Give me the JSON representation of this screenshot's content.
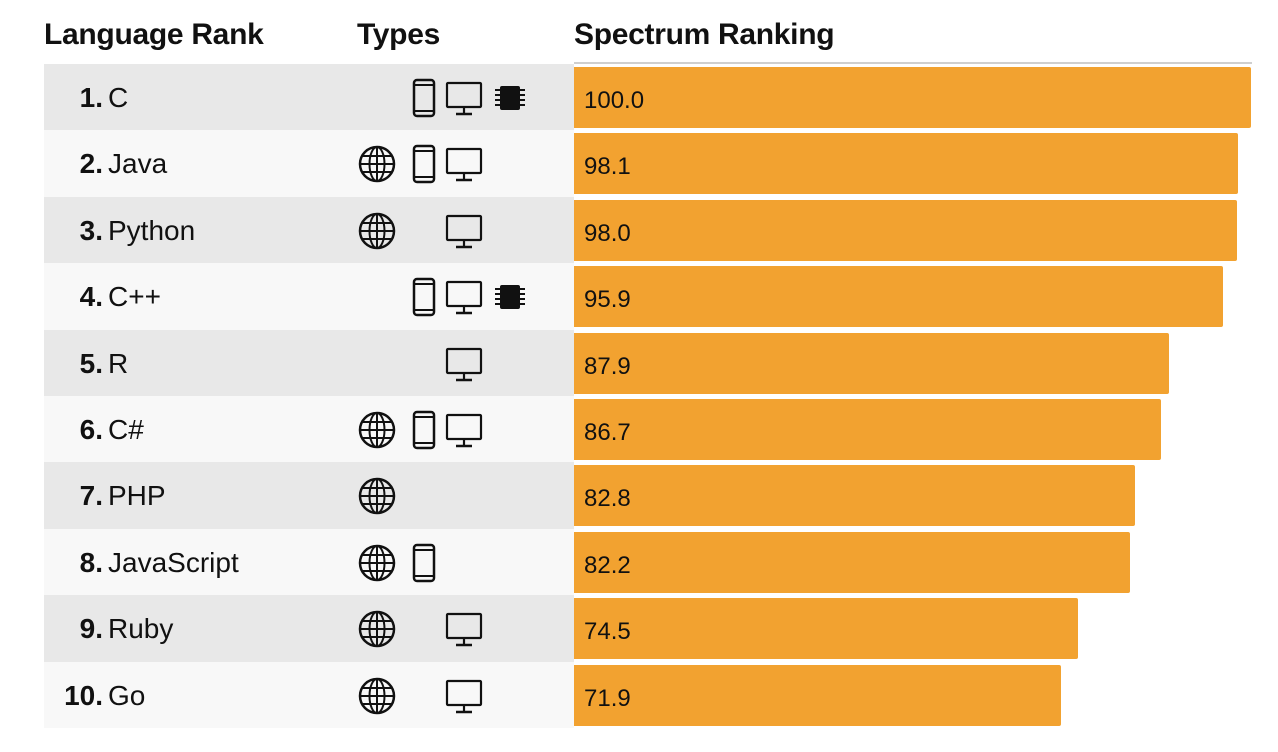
{
  "header": {
    "language_rank": "Language Rank",
    "types": "Types",
    "spectrum_ranking": "Spectrum Ranking"
  },
  "colors": {
    "bar": "#f2a230",
    "row_odd": "#e8e8e8",
    "row_even": "#f8f8f8",
    "icon": "#111111"
  },
  "chart_data": {
    "type": "bar",
    "orientation": "horizontal",
    "title": "",
    "xlabel": "",
    "ylabel": "",
    "xlim": [
      0,
      100
    ],
    "categories": [
      "C",
      "Java",
      "Python",
      "C++",
      "R",
      "C#",
      "PHP",
      "JavaScript",
      "Ruby",
      "Go"
    ],
    "values": [
      100.0,
      98.1,
      98.0,
      95.9,
      87.9,
      86.7,
      82.8,
      82.2,
      74.5,
      71.9
    ],
    "value_labels": [
      "100.0",
      "98.1",
      "98.0",
      "95.9",
      "87.9",
      "86.7",
      "82.8",
      "82.2",
      "74.5",
      "71.9"
    ],
    "grid": false
  },
  "rows": [
    {
      "rank": "1.",
      "name": "C",
      "types": {
        "web": false,
        "mobile": true,
        "desktop": true,
        "embedded": true
      }
    },
    {
      "rank": "2.",
      "name": "Java",
      "types": {
        "web": true,
        "mobile": true,
        "desktop": true,
        "embedded": false
      }
    },
    {
      "rank": "3.",
      "name": "Python",
      "types": {
        "web": true,
        "mobile": false,
        "desktop": true,
        "embedded": false
      }
    },
    {
      "rank": "4.",
      "name": "C++",
      "types": {
        "web": false,
        "mobile": true,
        "desktop": true,
        "embedded": true
      }
    },
    {
      "rank": "5.",
      "name": "R",
      "types": {
        "web": false,
        "mobile": false,
        "desktop": true,
        "embedded": false
      }
    },
    {
      "rank": "6.",
      "name": "C#",
      "types": {
        "web": true,
        "mobile": true,
        "desktop": true,
        "embedded": false
      }
    },
    {
      "rank": "7.",
      "name": "PHP",
      "types": {
        "web": true,
        "mobile": false,
        "desktop": false,
        "embedded": false
      }
    },
    {
      "rank": "8.",
      "name": "JavaScript",
      "types": {
        "web": true,
        "mobile": true,
        "desktop": false,
        "embedded": false
      }
    },
    {
      "rank": "9.",
      "name": "Ruby",
      "types": {
        "web": true,
        "mobile": false,
        "desktop": true,
        "embedded": false
      }
    },
    {
      "rank": "10.",
      "name": "Go",
      "types": {
        "web": true,
        "mobile": false,
        "desktop": true,
        "embedded": false
      }
    }
  ],
  "icons": {
    "web": "globe-icon",
    "mobile": "mobile-phone-icon",
    "desktop": "desktop-monitor-icon",
    "embedded": "chip-icon"
  }
}
